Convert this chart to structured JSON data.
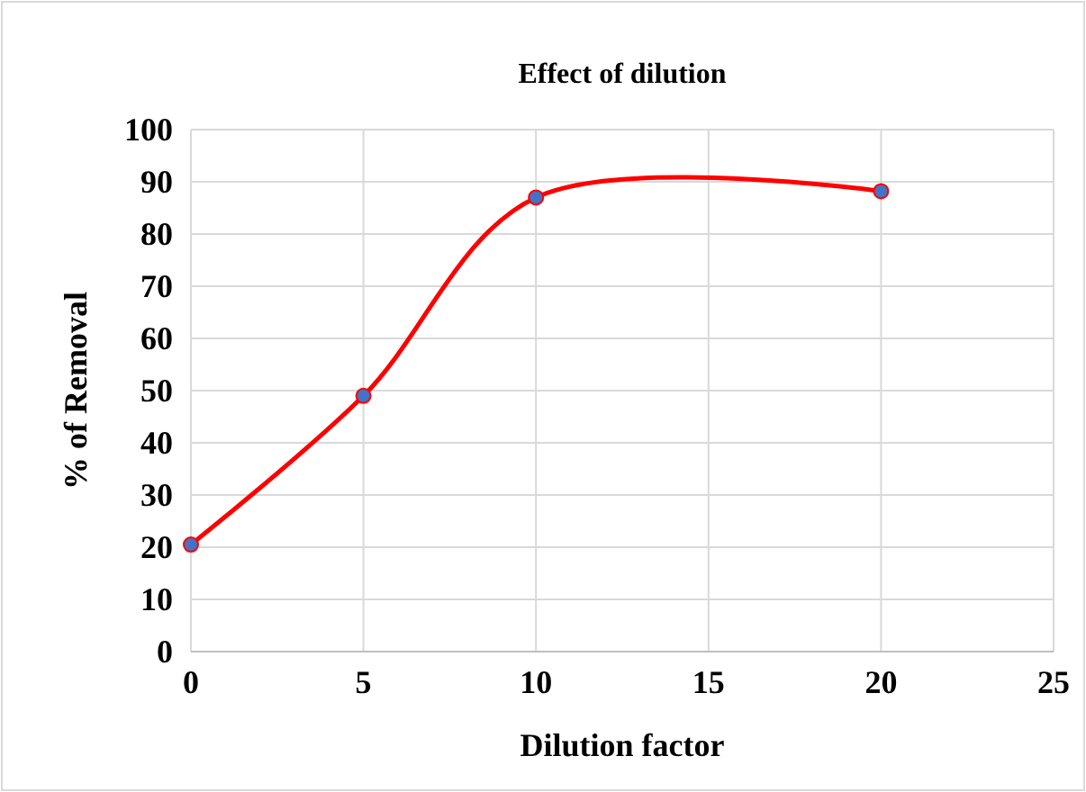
{
  "chart_data": {
    "type": "line",
    "title": "Effect of dilution",
    "xlabel": "Dilution factor",
    "ylabel": "% of Removal",
    "x": [
      0,
      5,
      10,
      20
    ],
    "series": [
      {
        "color": "#ff0000",
        "values": [
          20.5,
          49,
          87,
          88.2
        ]
      }
    ],
    "xlim": [
      0,
      25
    ],
    "xticks": [
      0,
      5,
      10,
      15,
      20,
      25
    ],
    "ylim": [
      0,
      100
    ],
    "yticks": [
      0,
      10,
      20,
      30,
      40,
      50,
      60,
      70,
      80,
      90,
      100
    ],
    "grid": true,
    "marker": "circle",
    "line_style": "solid"
  }
}
